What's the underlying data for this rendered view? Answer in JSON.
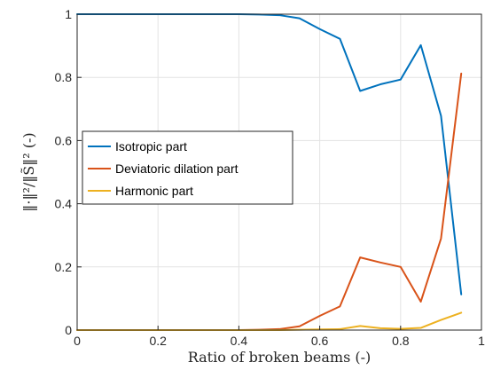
{
  "chart_data": {
    "type": "line",
    "xlabel": "Ratio of broken beams (-)",
    "ylabel": "‖·‖²/‖S̃‖² (-)",
    "xlim": [
      0,
      1
    ],
    "ylim": [
      0,
      1
    ],
    "xticks": [
      "0",
      "0.2",
      "0.4",
      "0.6",
      "0.8",
      "1"
    ],
    "yticks": [
      "0",
      "0.2",
      "0.4",
      "0.6",
      "0.8",
      "1"
    ],
    "grid": true,
    "legend_position": "center-left",
    "x": [
      0,
      0.05,
      0.1,
      0.15,
      0.2,
      0.25,
      0.3,
      0.35,
      0.4,
      0.45,
      0.5,
      0.55,
      0.6,
      0.65,
      0.7,
      0.75,
      0.8,
      0.85,
      0.9,
      0.95
    ],
    "series": [
      {
        "name": "Isotropic part",
        "color": "#0072BD",
        "values": [
          1.0,
          1.0,
          1.0,
          1.0,
          1.0,
          1.0,
          1.0,
          1.0,
          1.0,
          0.999,
          0.997,
          0.987,
          0.953,
          0.922,
          0.757,
          0.778,
          0.793,
          0.902,
          0.678,
          0.113
        ]
      },
      {
        "name": "Deviatoric dilation part",
        "color": "#D95319",
        "values": [
          0,
          0,
          0,
          0,
          0,
          0,
          0,
          0,
          0,
          0.001,
          0.003,
          0.012,
          0.045,
          0.075,
          0.23,
          0.214,
          0.2,
          0.09,
          0.29,
          0.812
        ]
      },
      {
        "name": "Harmonic part",
        "color": "#EDB120",
        "values": [
          0,
          0,
          0,
          0,
          0,
          0,
          0,
          0,
          0,
          0,
          0,
          0.001,
          0.002,
          0.003,
          0.013,
          0.006,
          0.004,
          0.007,
          0.032,
          0.055
        ]
      }
    ]
  }
}
